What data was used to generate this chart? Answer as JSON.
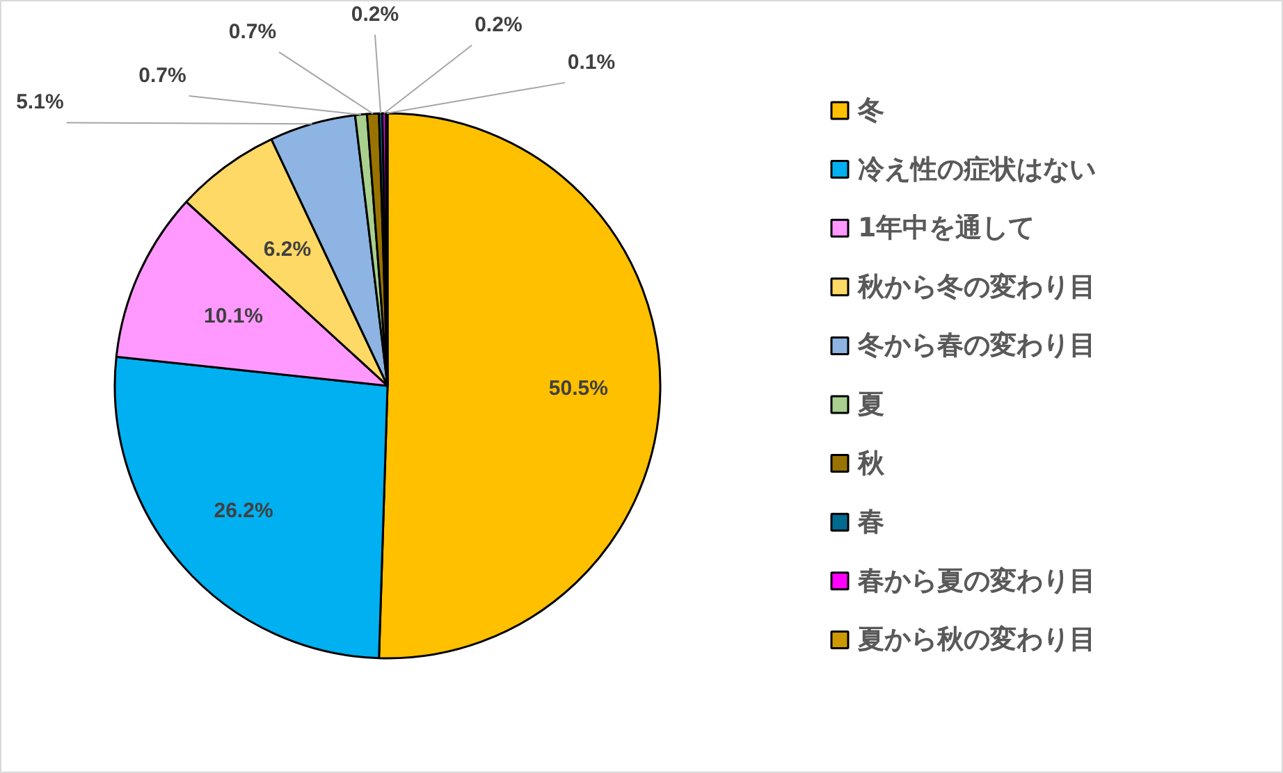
{
  "chart_data": {
    "type": "pie",
    "categories": [
      "冬",
      "冷え性の症状はない",
      "1年中を通して",
      "秋から冬の変わり目",
      "冬から春の変わり目",
      "夏",
      "秋",
      "春",
      "春から夏の変わり目",
      "夏から秋の変わり目"
    ],
    "values": [
      50.5,
      26.2,
      10.1,
      6.2,
      5.1,
      0.7,
      0.7,
      0.2,
      0.2,
      0.1
    ],
    "colors": [
      "#ffc000",
      "#00b0f0",
      "#ff99ff",
      "#ffd966",
      "#8db4e2",
      "#a9d08e",
      "#997300",
      "#006b8f",
      "#ff00ff",
      "#cc9900"
    ],
    "value_labels": [
      "50.5%",
      "26.2%",
      "10.1%",
      "6.2%",
      "5.1%",
      "0.7%",
      "0.7%",
      "0.2%",
      "0.2%",
      "0.1%"
    ],
    "legend": "right"
  }
}
